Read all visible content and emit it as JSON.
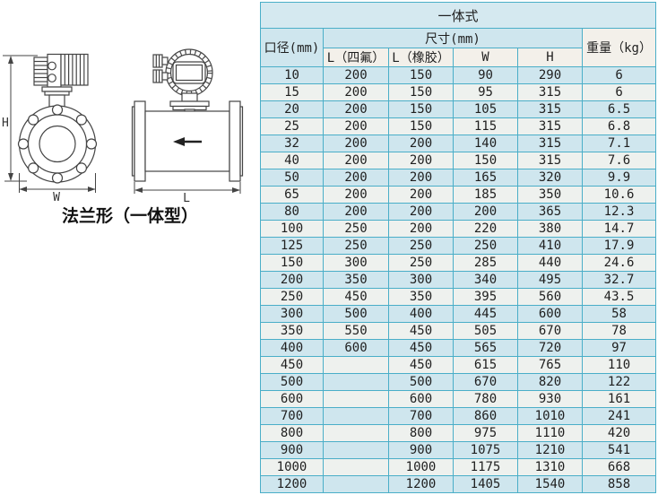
{
  "diagram": {
    "caption": "法兰形（一体型）",
    "dim_h": "H",
    "dim_w": "W",
    "dim_l": "L"
  },
  "table": {
    "title": "一体式",
    "headers": {
      "diameter": "口径(mm)",
      "size_group": "尺寸(mm)",
      "l_ptfe": "L（四氟）",
      "l_rubber": "L（橡胶）",
      "w": "W",
      "h": "H",
      "weight": "重量（kg）"
    },
    "rows": [
      [
        "10",
        "200",
        "150",
        "90",
        "290",
        "6"
      ],
      [
        "15",
        "200",
        "150",
        "95",
        "315",
        "6"
      ],
      [
        "20",
        "200",
        "150",
        "105",
        "315",
        "6.5"
      ],
      [
        "25",
        "200",
        "150",
        "115",
        "315",
        "6.8"
      ],
      [
        "32",
        "200",
        "200",
        "140",
        "315",
        "7.1"
      ],
      [
        "40",
        "200",
        "200",
        "150",
        "315",
        "7.6"
      ],
      [
        "50",
        "200",
        "200",
        "165",
        "320",
        "9.9"
      ],
      [
        "65",
        "200",
        "200",
        "185",
        "350",
        "10.6"
      ],
      [
        "80",
        "200",
        "200",
        "200",
        "365",
        "12.3"
      ],
      [
        "100",
        "250",
        "200",
        "220",
        "380",
        "14.7"
      ],
      [
        "125",
        "250",
        "250",
        "250",
        "410",
        "17.9"
      ],
      [
        "150",
        "300",
        "250",
        "285",
        "440",
        "24.6"
      ],
      [
        "200",
        "350",
        "300",
        "340",
        "495",
        "32.7"
      ],
      [
        "250",
        "450",
        "350",
        "395",
        "560",
        "43.5"
      ],
      [
        "300",
        "500",
        "400",
        "445",
        "600",
        "58"
      ],
      [
        "350",
        "550",
        "450",
        "505",
        "670",
        "78"
      ],
      [
        "400",
        "600",
        "450",
        "565",
        "720",
        "97"
      ],
      [
        "450",
        "",
        "450",
        "615",
        "765",
        "110"
      ],
      [
        "500",
        "",
        "500",
        "670",
        "820",
        "122"
      ],
      [
        "600",
        "",
        "600",
        "780",
        "930",
        "161"
      ],
      [
        "700",
        "",
        "700",
        "860",
        "1010",
        "241"
      ],
      [
        "800",
        "",
        "800",
        "975",
        "1110",
        "420"
      ],
      [
        "900",
        "",
        "900",
        "1075",
        "1210",
        "541"
      ],
      [
        "1000",
        "",
        "1000",
        "1175",
        "1310",
        "668"
      ],
      [
        "1200",
        "",
        "1200",
        "1405",
        "1540",
        "858"
      ]
    ]
  },
  "colors": {
    "border": "#4aaec8",
    "row_blue": "#cfe6ee",
    "row_light": "#eef1ee",
    "header_light": "#f3f0ea",
    "title_bg": "#d5e9f0",
    "text": "#1f1f1f"
  }
}
